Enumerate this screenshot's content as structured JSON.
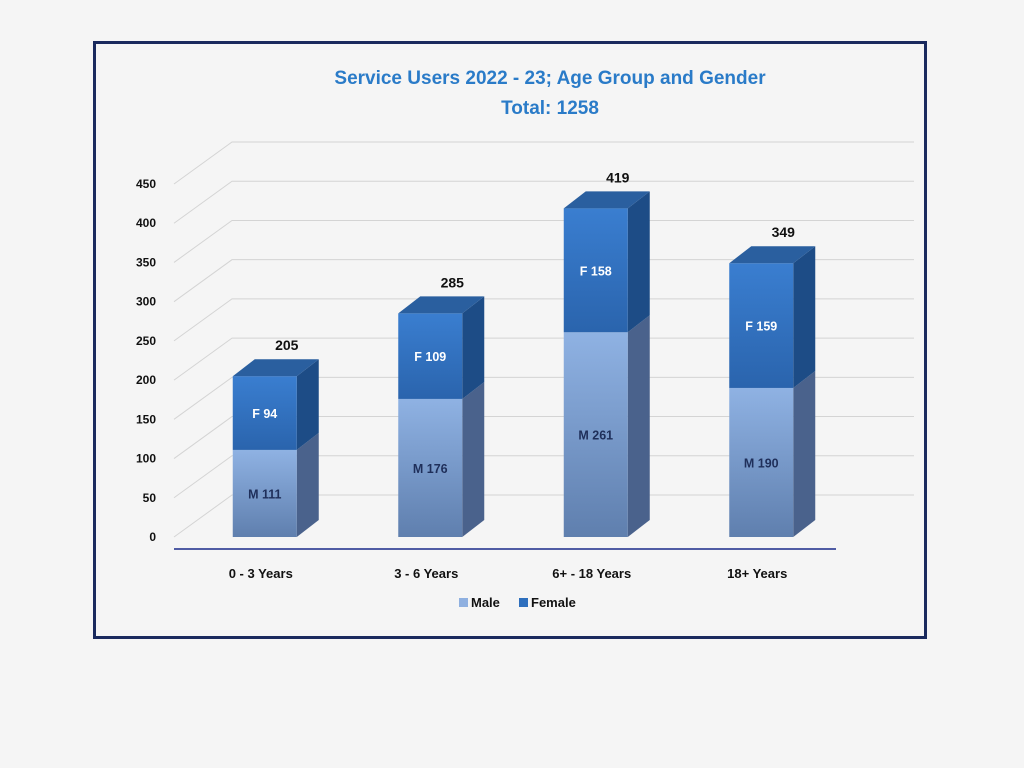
{
  "chart_data": {
    "type": "bar",
    "stacked": true,
    "title": "Service Users 2022 - 23; Age Group and Gender",
    "subtitle": "Total: 1258",
    "categories": [
      "0  -  3 Years",
      "3  -  6 Years",
      "6+  - 18 Years",
      "18+ Years"
    ],
    "series": [
      {
        "name": "Male",
        "prefix": "M",
        "values": [
          111,
          176,
          261,
          190
        ],
        "color": "#8fb0e0"
      },
      {
        "name": "Female",
        "prefix": "F",
        "values": [
          94,
          109,
          158,
          159
        ],
        "color": "#2e6fbd"
      }
    ],
    "totals": [
      205,
      285,
      419,
      349
    ],
    "ylim": [
      0,
      450
    ],
    "yticks": [
      0,
      50,
      100,
      150,
      200,
      250,
      300,
      350,
      400,
      450
    ],
    "grid": true,
    "legend": "bottom-center",
    "xlabel": "",
    "ylabel": ""
  },
  "colors": {
    "frame_border": "#1a2a5e",
    "title": "#2a7bc8",
    "male_front": "#8fb0e0",
    "female_front": "#2e6fbd",
    "axis": "#1a2a8a"
  }
}
